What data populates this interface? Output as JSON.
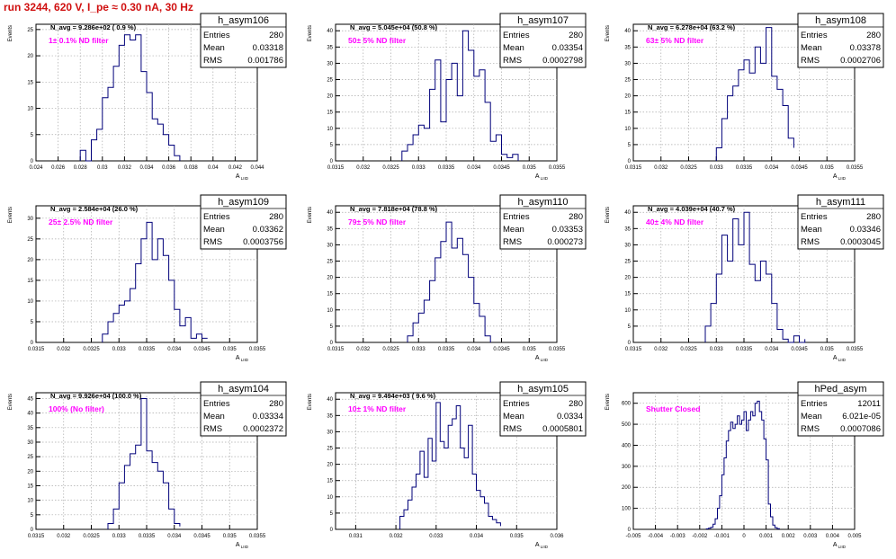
{
  "page": {
    "title": "run 3244,   620 V, I_pe ≈ 0.30 nA,  30 Hz",
    "colors": {
      "title": "#d01010",
      "histogram": "#00007a",
      "annotation": "#ff00ff",
      "grid": "#aaaaaa",
      "frame": "#000000"
    }
  },
  "chart_data": [
    {
      "type": "histogram",
      "stats_box": {
        "name": "h_asym106",
        "entries_label": "Entries",
        "entries": "280",
        "mean_label": "Mean",
        "mean": "0.03318",
        "rms_label": "RMS",
        "rms": "0.001786"
      },
      "navg_text": "N_avg = 9.286e+02 ( 0.9 %)",
      "annotation": "1± 0.1% ND filter",
      "ylabel": "Events",
      "xlabel": "A_LIID",
      "xlim": [
        0.024,
        0.044
      ],
      "ylim": [
        0,
        26
      ],
      "xticks": [
        "0.024",
        "0.026",
        "0.028",
        "0.03",
        "0.032",
        "0.034",
        "0.036",
        "0.038",
        "0.04",
        "0.042",
        "0.044"
      ],
      "yticks": [
        "0",
        "5",
        "10",
        "15",
        "20",
        "25"
      ],
      "grid": true,
      "bin_edges": [
        0.028,
        0.0285,
        0.029,
        0.0295,
        0.03,
        0.0305,
        0.031,
        0.0315,
        0.032,
        0.0325,
        0.033,
        0.0335,
        0.034,
        0.0345,
        0.035,
        0.0355,
        0.036,
        0.0365,
        0.037
      ],
      "counts": [
        2,
        0,
        4,
        6,
        12,
        14,
        18,
        22,
        24,
        23,
        24,
        17,
        13,
        8,
        7,
        5,
        3,
        1
      ]
    },
    {
      "type": "histogram",
      "stats_box": {
        "name": "h_asym107",
        "entries_label": "Entries",
        "entries": "280",
        "mean_label": "Mean",
        "mean": "0.03354",
        "rms_label": "RMS",
        "rms": "0.0002798"
      },
      "navg_text": "N_avg = 5.045e+04 (50.8 %)",
      "annotation": "50± 5% ND filter",
      "ylabel": "Events",
      "xlabel": "A_LIID",
      "xlim": [
        0.0315,
        0.0355
      ],
      "ylim": [
        0,
        42
      ],
      "xticks": [
        "0.0315",
        "0.032",
        "0.0325",
        "0.033",
        "0.0335",
        "0.034",
        "0.0345",
        "0.035",
        "0.0355"
      ],
      "yticks": [
        "0",
        "5",
        "10",
        "15",
        "20",
        "25",
        "30",
        "35",
        "40"
      ],
      "grid": true,
      "bin_edges": [
        0.0327,
        0.0328,
        0.0329,
        0.033,
        0.0331,
        0.0332,
        0.0333,
        0.0334,
        0.0335,
        0.0336,
        0.0337,
        0.0338,
        0.0339,
        0.034,
        0.0341,
        0.0342,
        0.0343,
        0.0344,
        0.0345,
        0.0346,
        0.0347,
        0.0348
      ],
      "counts": [
        3,
        5,
        8,
        11,
        10,
        22,
        31,
        12,
        25,
        30,
        20,
        40,
        34,
        26,
        28,
        18,
        6,
        8,
        2,
        1,
        2,
        0
      ]
    },
    {
      "type": "histogram",
      "stats_box": {
        "name": "h_asym108",
        "entries_label": "Entries",
        "entries": "280",
        "mean_label": "Mean",
        "mean": "0.03378",
        "rms_label": "RMS",
        "rms": "0.0002706"
      },
      "navg_text": "N_avg = 6.278e+04 (63.2 %)",
      "annotation": "63± 5% ND filter",
      "ylabel": "Events",
      "xlabel": "A_LIID",
      "xlim": [
        0.0315,
        0.0355
      ],
      "ylim": [
        0,
        42
      ],
      "xticks": [
        "0.0315",
        "0.032",
        "0.0325",
        "0.033",
        "0.0335",
        "0.034",
        "0.0345",
        "0.035",
        "0.0355"
      ],
      "yticks": [
        "0",
        "5",
        "10",
        "15",
        "20",
        "25",
        "30",
        "35",
        "40"
      ],
      "grid": true,
      "bin_edges": [
        0.033,
        0.0331,
        0.0332,
        0.0333,
        0.0334,
        0.0335,
        0.0336,
        0.0337,
        0.0338,
        0.0339,
        0.034,
        0.0341,
        0.0342,
        0.0343,
        0.0344
      ],
      "counts": [
        4,
        13,
        20,
        23,
        28,
        31,
        27,
        35,
        30,
        41,
        26,
        22,
        17,
        7,
        4
      ]
    },
    {
      "type": "histogram",
      "stats_box": {
        "name": "h_asym109",
        "entries_label": "Entries",
        "entries": "280",
        "mean_label": "Mean",
        "mean": "0.03362",
        "rms_label": "RMS",
        "rms": "0.0003756"
      },
      "navg_text": "N_avg = 2.584e+04 (26.0 %)",
      "annotation": "25± 2.5% ND filter",
      "ylabel": "Events",
      "xlabel": "A_LIID",
      "xlim": [
        0.0315,
        0.0355
      ],
      "ylim": [
        0,
        33
      ],
      "xticks": [
        "0.0315",
        "0.032",
        "0.0325",
        "0.033",
        "0.0335",
        "0.034",
        "0.0345",
        "0.035",
        "0.0355"
      ],
      "yticks": [
        "0",
        "5",
        "10",
        "15",
        "20",
        "25",
        "30"
      ],
      "grid": true,
      "bin_edges": [
        0.0327,
        0.0328,
        0.0329,
        0.033,
        0.0331,
        0.0332,
        0.0333,
        0.0334,
        0.0335,
        0.0336,
        0.0337,
        0.0338,
        0.0339,
        0.034,
        0.0341,
        0.0342,
        0.0343,
        0.0344,
        0.0345,
        0.0346
      ],
      "counts": [
        2,
        5,
        7,
        9,
        10,
        13,
        19,
        25,
        29,
        20,
        25,
        21,
        15,
        8,
        4,
        6,
        1,
        2,
        1,
        1
      ]
    },
    {
      "type": "histogram",
      "stats_box": {
        "name": "h_asym110",
        "entries_label": "Entries",
        "entries": "280",
        "mean_label": "Mean",
        "mean": "0.03353",
        "rms_label": "RMS",
        "rms": "0.000273"
      },
      "navg_text": "N_avg = 7.818e+04 (78.8 %)",
      "annotation": "79± 5% ND filter",
      "ylabel": "Events",
      "xlabel": "A_LIID",
      "xlim": [
        0.0315,
        0.0355
      ],
      "ylim": [
        0,
        42
      ],
      "xticks": [
        "0.0315",
        "0.032",
        "0.0325",
        "0.033",
        "0.0335",
        "0.034",
        "0.0345",
        "0.035",
        "0.0355"
      ],
      "yticks": [
        "0",
        "5",
        "10",
        "15",
        "20",
        "25",
        "30",
        "35",
        "40"
      ],
      "grid": true,
      "bin_edges": [
        0.0328,
        0.0329,
        0.033,
        0.0331,
        0.0332,
        0.0333,
        0.0334,
        0.0335,
        0.0336,
        0.0337,
        0.0338,
        0.0339,
        0.034,
        0.0341,
        0.0342,
        0.0343
      ],
      "counts": [
        2,
        6,
        9,
        13,
        19,
        26,
        31,
        37,
        29,
        32,
        27,
        20,
        12,
        8,
        2,
        0
      ]
    },
    {
      "type": "histogram",
      "stats_box": {
        "name": "h_asym111",
        "entries_label": "Entries",
        "entries": "280",
        "mean_label": "Mean",
        "mean": "0.03346",
        "rms_label": "RMS",
        "rms": "0.0003045"
      },
      "navg_text": "N_avg = 4.039e+04 (40.7 %)",
      "annotation": "40± 4% ND filter",
      "ylabel": "Events",
      "xlabel": "A_LIID",
      "xlim": [
        0.0315,
        0.0355
      ],
      "ylim": [
        0,
        42
      ],
      "xticks": [
        "0.0315",
        "0.032",
        "0.0325",
        "0.033",
        "0.0335",
        "0.034",
        "0.0345",
        "0.035",
        "0.0355"
      ],
      "yticks": [
        "0",
        "5",
        "10",
        "15",
        "20",
        "25",
        "30",
        "35",
        "40"
      ],
      "grid": true,
      "bin_edges": [
        0.0328,
        0.0329,
        0.033,
        0.0331,
        0.0332,
        0.0333,
        0.0334,
        0.0335,
        0.0336,
        0.0337,
        0.0338,
        0.0339,
        0.034,
        0.0341,
        0.0342,
        0.0343,
        0.0344,
        0.0345,
        0.0346
      ],
      "counts": [
        5,
        12,
        21,
        33,
        25,
        38,
        30,
        40,
        24,
        19,
        25,
        21,
        12,
        4,
        1,
        0,
        2,
        0,
        1
      ]
    },
    {
      "type": "histogram",
      "stats_box": {
        "name": "h_asym104",
        "entries_label": "Entries",
        "entries": "280",
        "mean_label": "Mean",
        "mean": "0.03334",
        "rms_label": "RMS",
        "rms": "0.0002372"
      },
      "navg_text": "N_avg = 9.926e+04 (100.0 %)",
      "annotation": "100% (No filter)",
      "ylabel": "Events",
      "xlabel": "A_LIID",
      "xlim": [
        0.0315,
        0.0355
      ],
      "ylim": [
        0,
        47
      ],
      "xticks": [
        "0.0315",
        "0.032",
        "0.0325",
        "0.033",
        "0.0335",
        "0.034",
        "0.0345",
        "0.035",
        "0.0355"
      ],
      "yticks": [
        "0",
        "5",
        "10",
        "15",
        "20",
        "25",
        "30",
        "35",
        "40",
        "45"
      ],
      "grid": true,
      "bin_edges": [
        0.0328,
        0.0329,
        0.033,
        0.0331,
        0.0332,
        0.0333,
        0.0334,
        0.0335,
        0.0336,
        0.0337,
        0.0338,
        0.0339,
        0.034,
        0.0341
      ],
      "counts": [
        2,
        7,
        16,
        22,
        26,
        29,
        45,
        27,
        23,
        20,
        16,
        7,
        2,
        1
      ]
    },
    {
      "type": "histogram",
      "stats_box": {
        "name": "h_asym105",
        "entries_label": "Entries",
        "entries": "280",
        "mean_label": "Mean",
        "mean": "0.0334",
        "rms_label": "RMS",
        "rms": "0.0005801"
      },
      "navg_text": "N_avg = 9.494e+03 ( 9.6 %)",
      "annotation": "10± 1% ND filter",
      "ylabel": "Events",
      "xlabel": "A_LIID",
      "xlim": [
        0.0305,
        0.036
      ],
      "ylim": [
        0,
        42
      ],
      "xticks": [
        "0.031",
        "0.032",
        "0.033",
        "0.034",
        "0.035",
        "0.036"
      ],
      "yticks": [
        "0",
        "5",
        "10",
        "15",
        "20",
        "25",
        "30",
        "35",
        "40"
      ],
      "grid": true,
      "bin_edges": [
        0.0321,
        0.0322,
        0.0323,
        0.0324,
        0.0325,
        0.0326,
        0.0327,
        0.0328,
        0.0329,
        0.033,
        0.0331,
        0.0332,
        0.0333,
        0.0334,
        0.0335,
        0.0336,
        0.0337,
        0.0338,
        0.0339,
        0.034,
        0.0341,
        0.0342,
        0.0343,
        0.0344,
        0.0345,
        0.0346
      ],
      "counts": [
        4,
        6,
        9,
        13,
        17,
        24,
        16,
        28,
        21,
        39,
        27,
        25,
        32,
        34,
        38,
        25,
        22,
        32,
        17,
        12,
        10,
        8,
        4,
        3,
        2,
        1
      ]
    },
    {
      "type": "histogram",
      "stats_box": {
        "name": "hPed_asym",
        "entries_label": "Entries",
        "entries": "12011",
        "mean_label": "Mean",
        "mean": "6.021e-05",
        "rms_label": "RMS",
        "rms": "0.0007086"
      },
      "navg_text": "",
      "annotation": "Shutter Closed",
      "ylabel": "Events",
      "xlabel": "A_LIID",
      "xlim": [
        -0.005,
        0.005
      ],
      "ylim": [
        0,
        650
      ],
      "xticks": [
        "-0.005",
        "-0.004",
        "-0.003",
        "-0.002",
        "-0.001",
        "0",
        "0.001",
        "0.002",
        "0.003",
        "0.004",
        "0.005"
      ],
      "yticks": [
        "0",
        "100",
        "200",
        "300",
        "400",
        "500",
        "600"
      ],
      "grid": true,
      "bin_edges": [
        -0.0017,
        -0.0016,
        -0.0015,
        -0.0014,
        -0.0013,
        -0.0012,
        -0.0011,
        -0.001,
        -0.0009,
        -0.0008,
        -0.0007,
        -0.0006,
        -0.0005,
        -0.0004,
        -0.0003,
        -0.0002,
        -0.0001,
        0.0,
        0.0001,
        0.0002,
        0.0003,
        0.0004,
        0.0005,
        0.0006,
        0.0007,
        0.0008,
        0.0009,
        0.001,
        0.0011,
        0.0012,
        0.0013,
        0.0014,
        0.0015,
        0.0016
      ],
      "counts": [
        2,
        5,
        10,
        25,
        50,
        100,
        160,
        260,
        340,
        420,
        470,
        510,
        480,
        500,
        540,
        500,
        520,
        560,
        470,
        520,
        560,
        540,
        600,
        610,
        560,
        520,
        430,
        330,
        120,
        60,
        20,
        8,
        3
      ]
    }
  ]
}
